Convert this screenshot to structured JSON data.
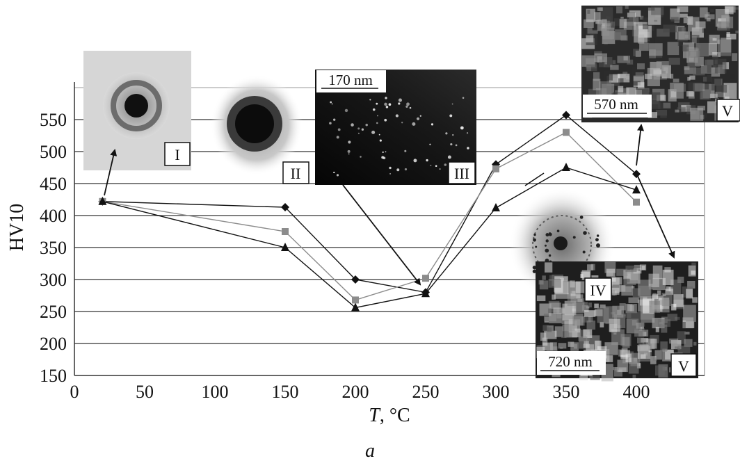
{
  "chart_data": {
    "type": "line",
    "xlabel_var": "T",
    "xlabel_unit": ", °C",
    "ylabel": "HV10",
    "xlim": [
      0,
      440
    ],
    "ylim": [
      150,
      600
    ],
    "xticks": [
      0,
      50,
      100,
      150,
      200,
      250,
      300,
      350,
      400
    ],
    "yticks": [
      150,
      200,
      250,
      300,
      350,
      400,
      450,
      500,
      550
    ],
    "grid": "horizontal",
    "series": [
      {
        "marker": "diamond",
        "color": "#111111",
        "x": [
          20,
          150,
          200,
          250,
          300,
          350,
          400
        ],
        "values": [
          422,
          413,
          300,
          280,
          480,
          557,
          465
        ]
      },
      {
        "marker": "square",
        "color": "#8c8c8c",
        "x": [
          20,
          150,
          200,
          250,
          300,
          350,
          400
        ],
        "values": [
          422,
          375,
          268,
          302,
          473,
          530,
          421
        ]
      },
      {
        "marker": "triangle",
        "color": "#111111",
        "x": [
          20,
          150,
          200,
          250,
          300,
          350,
          400
        ],
        "values": [
          422,
          350,
          256,
          278,
          412,
          475,
          440
        ]
      }
    ]
  },
  "insets": {
    "panel_I": "I",
    "panel_II": "II",
    "panel_III": "III",
    "panel_IV": "IV",
    "panel_V_top": "V",
    "panel_V_bottom": "V",
    "scale_III": "170 nm",
    "scale_V_top": "570 nm",
    "scale_V_bottom": "720 nm"
  },
  "caption": "a"
}
